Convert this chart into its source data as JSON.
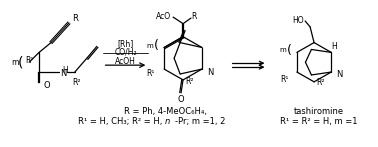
{
  "background_color": "#ffffff",
  "figsize": [
    3.78,
    1.47
  ],
  "dpi": 100,
  "line_color": "#000000",
  "text_color": "#000000",
  "lw": 0.9,
  "fs": 6.0,
  "bottom_left_line1": "R = Ph, 4-MeOC₆H₄,",
  "bottom_left_line2": "R¹ = H, CH₃; R² = H, n-Pr; m =1, 2",
  "bottom_right_line1": "tashiromine",
  "bottom_right_line2": "R¹ = R² = H, m =1",
  "conditions": [
    "[Rh]",
    "CO/H₂",
    "AcOH"
  ]
}
